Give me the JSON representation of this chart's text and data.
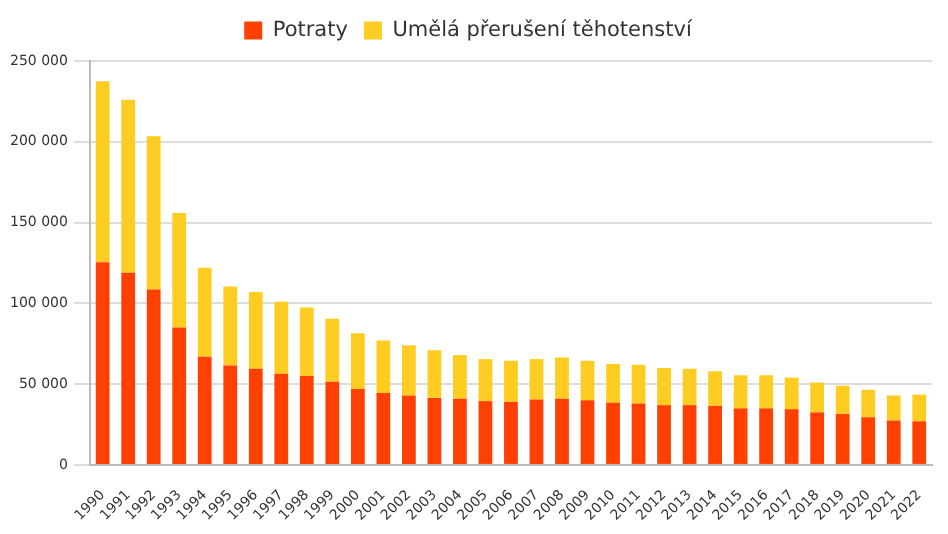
{
  "chart_data": {
    "type": "bar",
    "stacked": true,
    "categories": [
      "1990",
      "1991",
      "1992",
      "1993",
      "1994",
      "1995",
      "1996",
      "1997",
      "1998",
      "1999",
      "2000",
      "2001",
      "2002",
      "2003",
      "2004",
      "2005",
      "2006",
      "2007",
      "2008",
      "2009",
      "2010",
      "2011",
      "2012",
      "2013",
      "2014",
      "2015",
      "2016",
      "2017",
      "2018",
      "2019",
      "2020",
      "2021",
      "2022"
    ],
    "series": [
      {
        "name": "Potraty",
        "color": "#ff4000",
        "values": [
          125500,
          119000,
          108500,
          85000,
          67000,
          61500,
          59500,
          56500,
          55000,
          51500,
          47000,
          44500,
          43000,
          41500,
          41000,
          39500,
          39000,
          40500,
          41000,
          40000,
          38500,
          38000,
          37000,
          37000,
          36500,
          35000,
          35000,
          34500,
          32500,
          31500,
          29500,
          27500,
          27000
        ]
      },
      {
        "name": "Umělá přerušení těhotenství",
        "color": "#ffcc22",
        "values": [
          112000,
          107000,
          95000,
          71000,
          55000,
          49000,
          47500,
          44500,
          42500,
          39000,
          34500,
          32500,
          31000,
          29500,
          27000,
          26000,
          25500,
          25000,
          25500,
          24500,
          24000,
          24000,
          23000,
          22500,
          21500,
          20500,
          20500,
          19500,
          18500,
          17500,
          17000,
          15500,
          16500
        ]
      }
    ],
    "ylim": [
      0,
      250000
    ],
    "yticks": [
      {
        "value": 0,
        "label": "0"
      },
      {
        "value": 50000,
        "label": "50 000"
      },
      {
        "value": 100000,
        "label": "100 000"
      },
      {
        "value": 150000,
        "label": "150 000"
      },
      {
        "value": 200000,
        "label": "200 000"
      },
      {
        "value": 250000,
        "label": "250 000"
      }
    ],
    "grid": "y",
    "legend": "top"
  }
}
